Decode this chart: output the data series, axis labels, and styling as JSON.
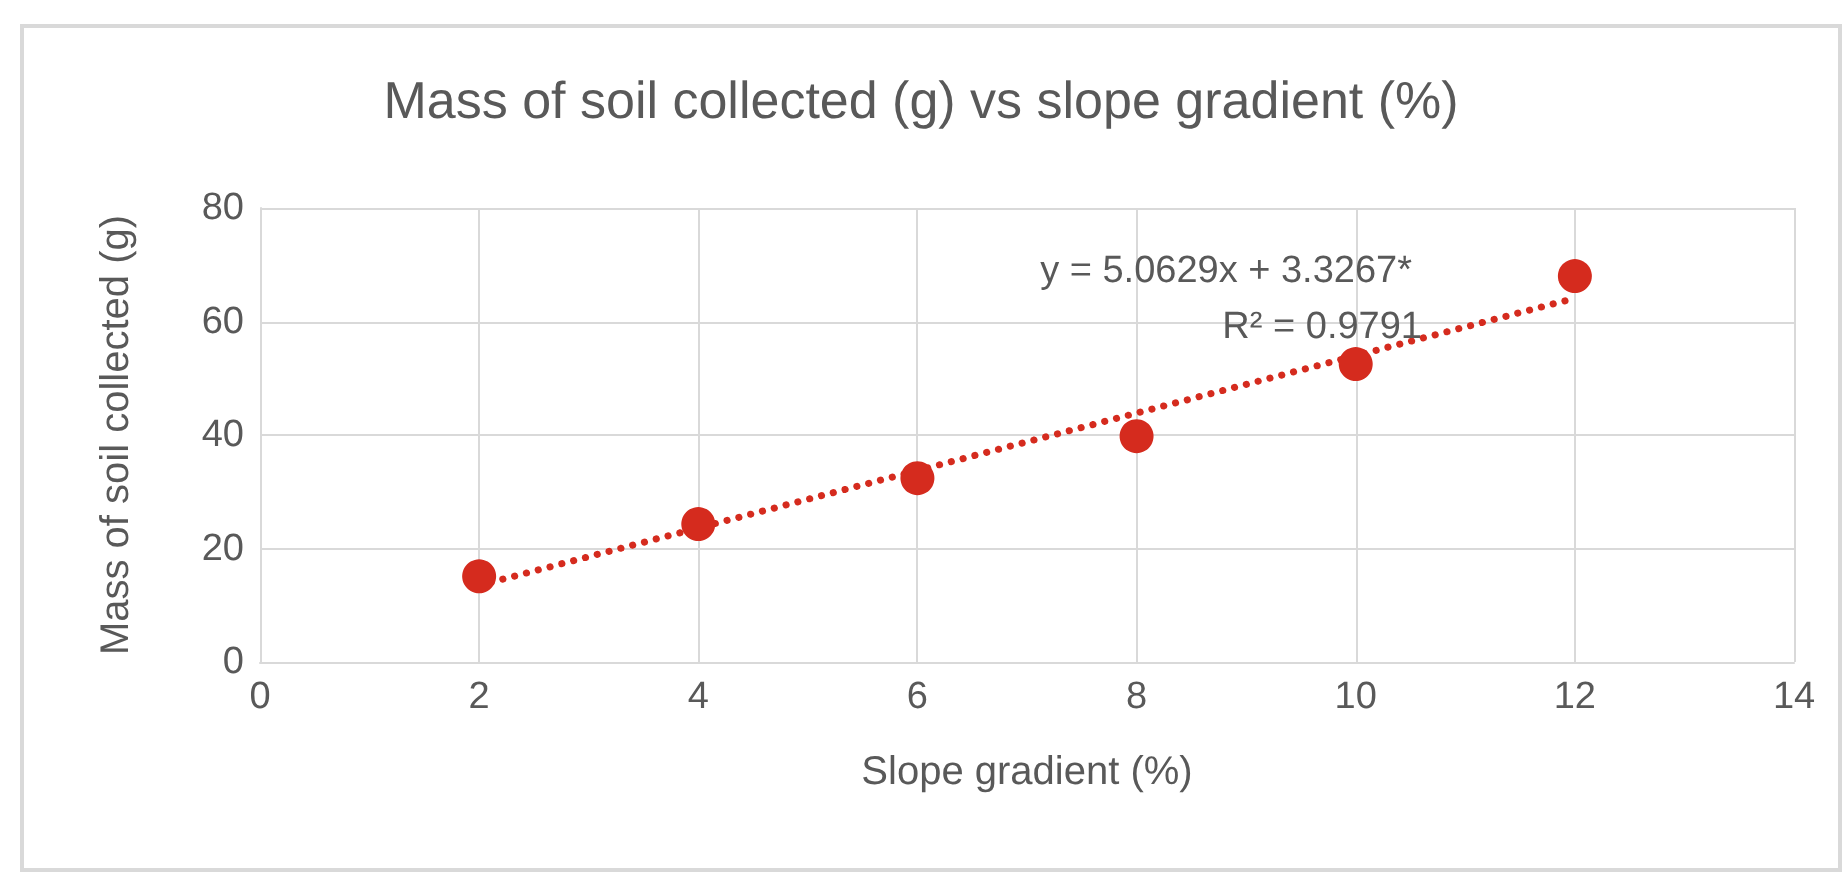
{
  "chart_data": {
    "type": "scatter",
    "title": "Mass of soil collected (g) vs slope gradient (%)",
    "xlabel": "Slope gradient (%)",
    "ylabel": "Mass of soil collected (g)",
    "xlim": [
      0,
      14
    ],
    "xticks": [
      0,
      2,
      4,
      6,
      8,
      10,
      12,
      14
    ],
    "ylim": [
      0,
      80
    ],
    "yticks": [
      0,
      20,
      40,
      60,
      80
    ],
    "grid": true,
    "series": [
      {
        "color": "#d52b1e",
        "marker": "circle",
        "x": [
          2,
          4,
          6,
          8,
          10,
          12
        ],
        "values": [
          15.1,
          24.3,
          32.4,
          39.8,
          52.5,
          68
        ]
      },
      {
        "type": "line",
        "color": "#d52b1e",
        "marker": "none",
        "line_style": "dotted",
        "x": [
          2,
          12
        ],
        "values": [
          13.5,
          64.1
        ]
      }
    ],
    "annotations": [
      "y = 5.0629x + 3.3267*",
      "R² = 0.9791"
    ]
  }
}
